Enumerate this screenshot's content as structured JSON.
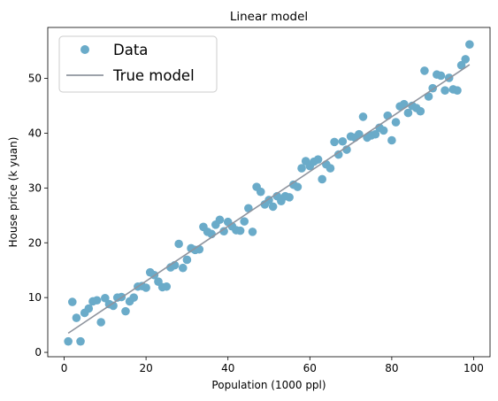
{
  "chart_data": {
    "type": "scatter",
    "title": "Linear model",
    "xlabel": "Population (1000 ppl)",
    "ylabel": "House price (k yuan)",
    "xlim": [
      -4,
      104
    ],
    "ylim": [
      -0.8,
      59.3
    ],
    "xticks": [
      0,
      20,
      40,
      60,
      80,
      100
    ],
    "yticks": [
      0,
      10,
      20,
      30,
      40,
      50
    ],
    "grid": false,
    "legend_position": "top-left",
    "colors": {
      "data": "#6aabc9",
      "model": "#8f949e"
    },
    "series": [
      {
        "name": "Data",
        "kind": "scatter",
        "points": [
          [
            1,
            2
          ],
          [
            2,
            9.2
          ],
          [
            3,
            6.3
          ],
          [
            4,
            2
          ],
          [
            5,
            7.2
          ],
          [
            6,
            8
          ],
          [
            7,
            9.3
          ],
          [
            8,
            9.5
          ],
          [
            9,
            5.5
          ],
          [
            10,
            9.9
          ],
          [
            11,
            8.8
          ],
          [
            12,
            8.5
          ],
          [
            13,
            10
          ],
          [
            14,
            10.1
          ],
          [
            15,
            7.5
          ],
          [
            16,
            9.3
          ],
          [
            17,
            10
          ],
          [
            18,
            12
          ],
          [
            19,
            12.1
          ],
          [
            20,
            11.8
          ],
          [
            21,
            14.6
          ],
          [
            22,
            14.1
          ],
          [
            23,
            12.9
          ],
          [
            24,
            11.9
          ],
          [
            25,
            12
          ],
          [
            26,
            15.5
          ],
          [
            27,
            15.9
          ],
          [
            28,
            19.8
          ],
          [
            29,
            15.4
          ],
          [
            30,
            16.9
          ],
          [
            31,
            19
          ],
          [
            32,
            18.7
          ],
          [
            33,
            18.8
          ],
          [
            34,
            22.9
          ],
          [
            35,
            22
          ],
          [
            36,
            21.6
          ],
          [
            37,
            23.3
          ],
          [
            38,
            24.2
          ],
          [
            39,
            22.1
          ],
          [
            40,
            23.8
          ],
          [
            41,
            23
          ],
          [
            42,
            22.3
          ],
          [
            43,
            22.2
          ],
          [
            44,
            23.9
          ],
          [
            45,
            26.3
          ],
          [
            46,
            22
          ],
          [
            47,
            30.2
          ],
          [
            48,
            29.3
          ],
          [
            49,
            27
          ],
          [
            50,
            27.8
          ],
          [
            51,
            26.6
          ],
          [
            52,
            28.5
          ],
          [
            53,
            27.6
          ],
          [
            54,
            28.5
          ],
          [
            55,
            28.3
          ],
          [
            56,
            30.6
          ],
          [
            57,
            30.2
          ],
          [
            58,
            33.6
          ],
          [
            59,
            34.9
          ],
          [
            60,
            34
          ],
          [
            61,
            34.8
          ],
          [
            62,
            35.2
          ],
          [
            63,
            31.6
          ],
          [
            64,
            34.3
          ],
          [
            65,
            33.6
          ],
          [
            66,
            38.4
          ],
          [
            67,
            36.1
          ],
          [
            68,
            38.5
          ],
          [
            69,
            37
          ],
          [
            70,
            39.4
          ],
          [
            71,
            39.2
          ],
          [
            72,
            39.8
          ],
          [
            73,
            43
          ],
          [
            74,
            39.2
          ],
          [
            75,
            39.6
          ],
          [
            76,
            39.8
          ],
          [
            77,
            41
          ],
          [
            78,
            40.5
          ],
          [
            79,
            43.2
          ],
          [
            80,
            38.7
          ],
          [
            81,
            42
          ],
          [
            82,
            44.9
          ],
          [
            83,
            45.3
          ],
          [
            84,
            43.7
          ],
          [
            85,
            45
          ],
          [
            86,
            44.6
          ],
          [
            87,
            44
          ],
          [
            88,
            51.4
          ],
          [
            89,
            46.7
          ],
          [
            90,
            48.2
          ],
          [
            91,
            50.7
          ],
          [
            92,
            50.5
          ],
          [
            93,
            47.8
          ],
          [
            94,
            50.1
          ],
          [
            95,
            48
          ],
          [
            96,
            47.8
          ],
          [
            97,
            52.4
          ],
          [
            98,
            53.5
          ],
          [
            99,
            56.2
          ]
        ]
      },
      {
        "name": "True model",
        "kind": "line",
        "points": [
          [
            1,
            3.5
          ],
          [
            99,
            52.5
          ]
        ]
      }
    ]
  }
}
